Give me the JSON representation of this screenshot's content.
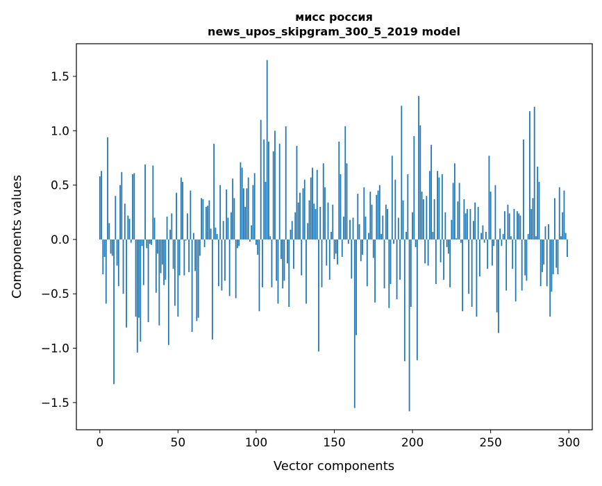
{
  "chart_data": {
    "type": "bar",
    "title": "мисс россия",
    "subtitle": "news_upos_skipgram_300_5_2019 model",
    "xlabel": "Vector components",
    "ylabel": "Components values",
    "bar_color": "#1f77b4",
    "xlim": [
      -15,
      315
    ],
    "ylim": [
      -1.75,
      1.8
    ],
    "x_ticks": [
      0,
      50,
      100,
      150,
      200,
      250,
      300
    ],
    "x_tick_labels": [
      "0",
      "50",
      "100",
      "150",
      "200",
      "250",
      "300"
    ],
    "y_ticks": [
      -1.5,
      -1.0,
      -0.5,
      0.0,
      0.5,
      1.0,
      1.5
    ],
    "y_tick_labels": [
      "−1.5",
      "−1.0",
      "−0.5",
      "0.0",
      "0.5",
      "1.0",
      "1.5"
    ],
    "grid": false,
    "legend": "none",
    "x": [
      0,
      1,
      2,
      3,
      4,
      5,
      6,
      7,
      8,
      9,
      10,
      11,
      12,
      13,
      14,
      15,
      16,
      17,
      18,
      19,
      20,
      21,
      22,
      23,
      24,
      25,
      26,
      27,
      28,
      29,
      30,
      31,
      32,
      33,
      34,
      35,
      36,
      37,
      38,
      39,
      40,
      41,
      42,
      43,
      44,
      45,
      46,
      47,
      48,
      49,
      50,
      51,
      52,
      53,
      54,
      55,
      56,
      57,
      58,
      59,
      60,
      61,
      62,
      63,
      64,
      65,
      66,
      67,
      68,
      69,
      70,
      71,
      72,
      73,
      74,
      75,
      76,
      77,
      78,
      79,
      80,
      81,
      82,
      83,
      84,
      85,
      86,
      87,
      88,
      89,
      90,
      91,
      92,
      93,
      94,
      95,
      96,
      97,
      98,
      99,
      100,
      101,
      102,
      103,
      104,
      105,
      106,
      107,
      108,
      109,
      110,
      111,
      112,
      113,
      114,
      115,
      116,
      117,
      118,
      119,
      120,
      121,
      122,
      123,
      124,
      125,
      126,
      127,
      128,
      129,
      130,
      131,
      132,
      133,
      134,
      135,
      136,
      137,
      138,
      139,
      140,
      141,
      142,
      143,
      144,
      145,
      146,
      147,
      148,
      149,
      150,
      151,
      152,
      153,
      154,
      155,
      156,
      157,
      158,
      159,
      160,
      161,
      162,
      163,
      164,
      165,
      166,
      167,
      168,
      169,
      170,
      171,
      172,
      173,
      174,
      175,
      176,
      177,
      178,
      179,
      180,
      181,
      182,
      183,
      184,
      185,
      186,
      187,
      188,
      189,
      190,
      191,
      192,
      193,
      194,
      195,
      196,
      197,
      198,
      199,
      200,
      201,
      202,
      203,
      204,
      205,
      206,
      207,
      208,
      209,
      210,
      211,
      212,
      213,
      214,
      215,
      216,
      217,
      218,
      219,
      220,
      221,
      222,
      223,
      224,
      225,
      226,
      227,
      228,
      229,
      230,
      231,
      232,
      233,
      234,
      235,
      236,
      237,
      238,
      239,
      240,
      241,
      242,
      243,
      244,
      245,
      246,
      247,
      248,
      249,
      250,
      251,
      252,
      253,
      254,
      255,
      256,
      257,
      258,
      259,
      260,
      261,
      262,
      263,
      264,
      265,
      266,
      267,
      268,
      269,
      270,
      271,
      272,
      273,
      274,
      275,
      276,
      277,
      278,
      279,
      280,
      281,
      282,
      283,
      284,
      285,
      286,
      287,
      288,
      289,
      290,
      291,
      292,
      293,
      294,
      295,
      296,
      297,
      298,
      299
    ],
    "values": [
      0.58,
      0.63,
      -0.32,
      -0.16,
      -0.59,
      0.94,
      0.15,
      -0.13,
      -0.15,
      -1.33,
      0.4,
      -0.24,
      -0.43,
      0.5,
      0.62,
      -0.5,
      0.33,
      -0.81,
      0.22,
      0.19,
      -0.03,
      0.6,
      0.61,
      -0.71,
      -1.04,
      -0.72,
      -0.94,
      -0.06,
      -0.42,
      0.69,
      -0.08,
      -0.76,
      -0.04,
      -0.05,
      0.68,
      0.2,
      -0.49,
      -0.13,
      -0.79,
      -0.31,
      -0.23,
      -0.42,
      -0.37,
      0.21,
      -0.97,
      0.09,
      0.24,
      -0.27,
      -0.61,
      0.43,
      -0.71,
      -0.33,
      0.57,
      0.53,
      -0.33,
      -0.01,
      0.24,
      -0.3,
      0.45,
      -0.85,
      0.06,
      -0.29,
      -0.75,
      -0.72,
      -0.15,
      0.38,
      0.37,
      -0.07,
      0.3,
      0.31,
      0.36,
      0.1,
      -0.92,
      0.88,
      0.11,
      0.05,
      -0.43,
      0.5,
      -0.47,
      0.17,
      -0.38,
      0.46,
      0.2,
      -0.52,
      0.25,
      0.56,
      0.38,
      -0.54,
      -0.08,
      -0.06,
      0.71,
      0.66,
      0.47,
      0.3,
      0.47,
      0.57,
      -0.02,
      0.13,
      0.5,
      0.61,
      -0.05,
      -0.14,
      -0.66,
      1.1,
      -0.44,
      0.92,
      0.53,
      1.65,
      0.9,
      0.03,
      -0.44,
      0.81,
      1.0,
      -0.38,
      -0.59,
      0.88,
      -0.18,
      -0.45,
      -0.38,
      1.04,
      -0.22,
      -0.62,
      0.09,
      0.17,
      -0.27,
      0.25,
      0.86,
      0.34,
      0.43,
      -0.33,
      0.47,
      0.55,
      -0.59,
      0.15,
      0.36,
      0.57,
      0.66,
      0.33,
      0.28,
      0.64,
      -1.03,
      0.3,
      -0.44,
      0.7,
      0.48,
      -0.24,
      0.34,
      -0.37,
      0.07,
      0.32,
      -0.18,
      -0.13,
      -0.23,
      0.9,
      0.6,
      -0.16,
      0.21,
      1.04,
      0.7,
      -0.04,
      0.18,
      -0.36,
      0.2,
      -1.55,
      -0.88,
      0.42,
      0.14,
      -0.2,
      -0.14,
      0.48,
      0.21,
      -0.43,
      0.06,
      0.44,
      0.32,
      -0.17,
      -0.58,
      0.41,
      0.45,
      0.5,
      0.05,
      0.22,
      -0.45,
      0.32,
      0.28,
      -0.63,
      -0.41,
      0.77,
      -0.04,
      0.55,
      -0.55,
      0.2,
      -0.37,
      1.23,
      0.36,
      -1.12,
      0.07,
      0.6,
      -1.58,
      -0.62,
      0.25,
      0.95,
      -0.07,
      -1.11,
      1.32,
      1.05,
      0.44,
      0.37,
      -0.22,
      0.4,
      -0.24,
      0.63,
      0.87,
      0.07,
      0.37,
      -0.41,
      0.63,
      0.57,
      -0.21,
      0.6,
      -0.37,
      0.25,
      -0.07,
      -0.13,
      -0.44,
      0.18,
      0.52,
      0.7,
      0.01,
      0.35,
      0.52,
      -0.03,
      -0.66,
      0.37,
      0.24,
      0.28,
      -0.5,
      0.28,
      -0.62,
      0.17,
      0.34,
      -0.71,
      0.3,
      -0.34,
      0.06,
      0.13,
      -0.03,
      0.07,
      -0.27,
      0.77,
      0.44,
      -0.24,
      -0.06,
      0.5,
      -0.67,
      -0.86,
      0.1,
      -0.06,
      0.05,
      0.26,
      -0.47,
      0.32,
      0.24,
      0.03,
      -0.27,
      0.28,
      -0.57,
      0.26,
      0.24,
      0.22,
      -0.47,
      0.92,
      -0.33,
      -0.38,
      0.05,
      1.18,
      0.28,
      0.38,
      1.22,
      0.03,
      0.67,
      0.53,
      -0.43,
      -0.3,
      -0.23,
      0.12,
      -0.43,
      0.14,
      -0.71,
      -0.48,
      -0.32,
      0.38,
      -0.26,
      -0.32,
      0.48,
      0.03,
      0.25,
      0.45,
      0.06,
      -0.16
    ]
  }
}
